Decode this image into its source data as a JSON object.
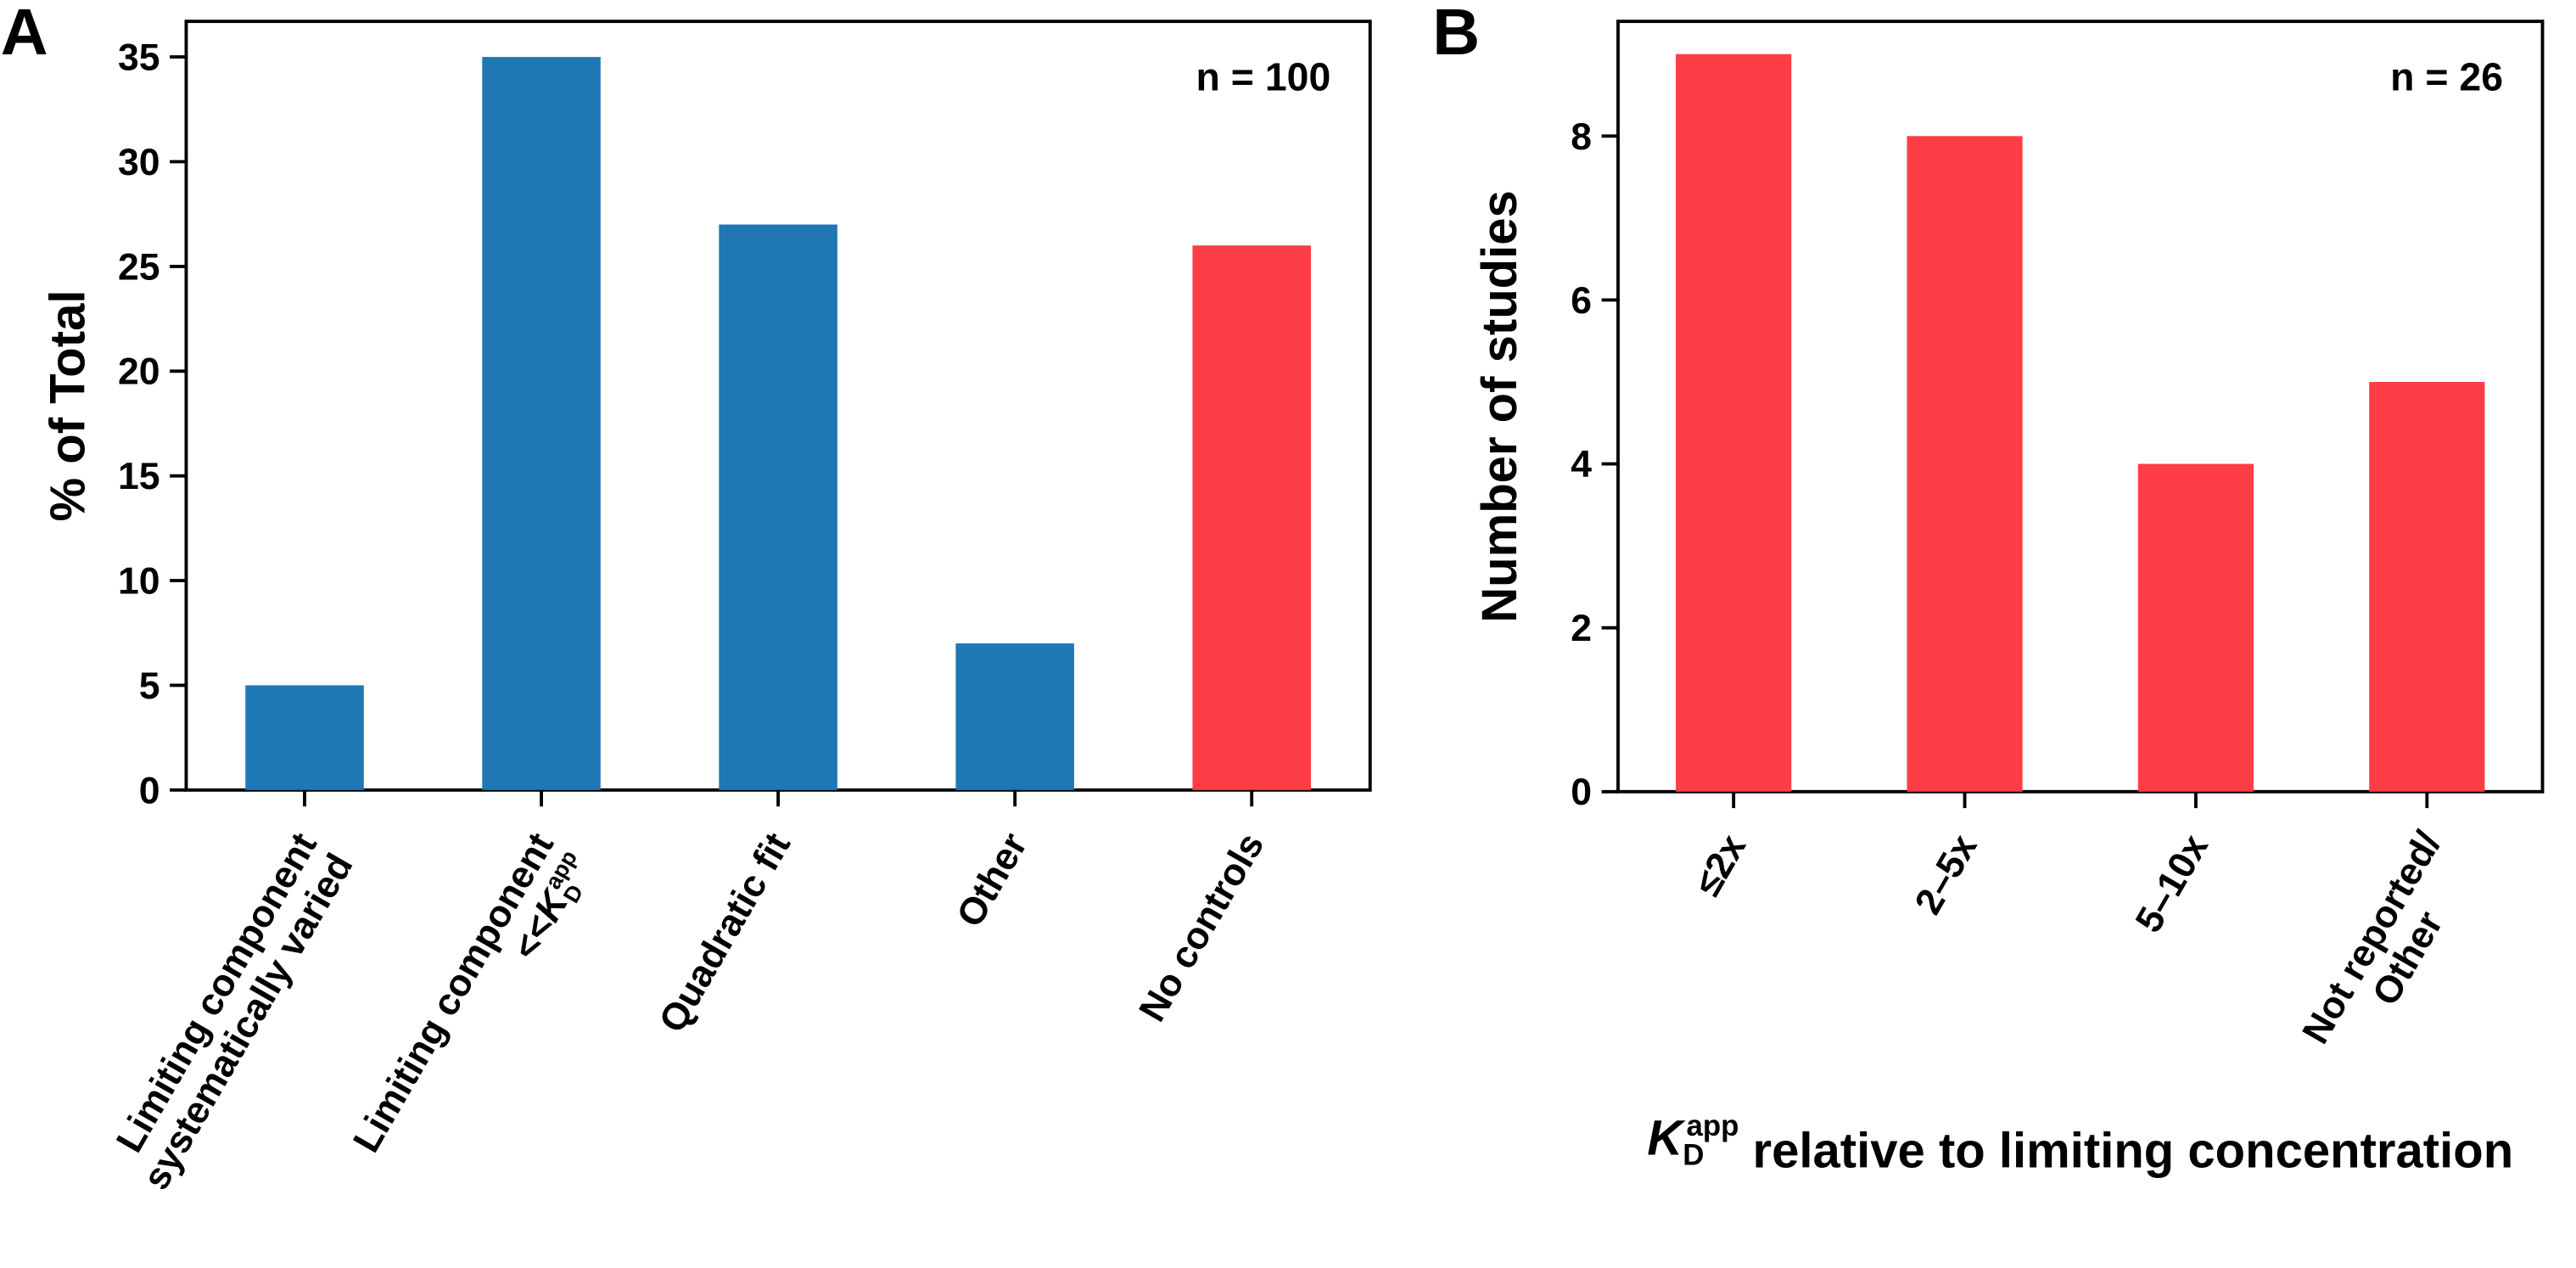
{
  "chart_data": [
    {
      "type": "bar",
      "panel_label": "A",
      "annotation": "n = 100",
      "ylabel": "% of Total",
      "categories": [
        "Limiting component\nsystematically varied",
        "Limiting component\n<<KDapp",
        "Quadratic fit",
        "Other",
        "No controls"
      ],
      "values": [
        5,
        35,
        27,
        7,
        26
      ],
      "colors": [
        "#1f77b4",
        "#1f77b4",
        "#1f77b4",
        "#1f77b4",
        "#fc3d45"
      ],
      "ylim": [
        0,
        36.7
      ],
      "yticks": [
        0,
        5,
        10,
        15,
        20,
        25,
        30,
        35
      ]
    },
    {
      "type": "bar",
      "panel_label": "B",
      "annotation": "n = 26",
      "ylabel": "Number of studies",
      "xlabel": "KDapp relative to limiting concentration",
      "categories": [
        "≤2x",
        "2–5x",
        "5–10x",
        "Not reported/\nOther"
      ],
      "values": [
        9,
        8,
        4,
        5
      ],
      "colors": [
        "#fc3d45",
        "#fc3d45",
        "#fc3d45",
        "#fc3d45"
      ],
      "ylim": [
        0,
        9.4
      ],
      "yticks": [
        0,
        2,
        4,
        6,
        8
      ]
    }
  ]
}
